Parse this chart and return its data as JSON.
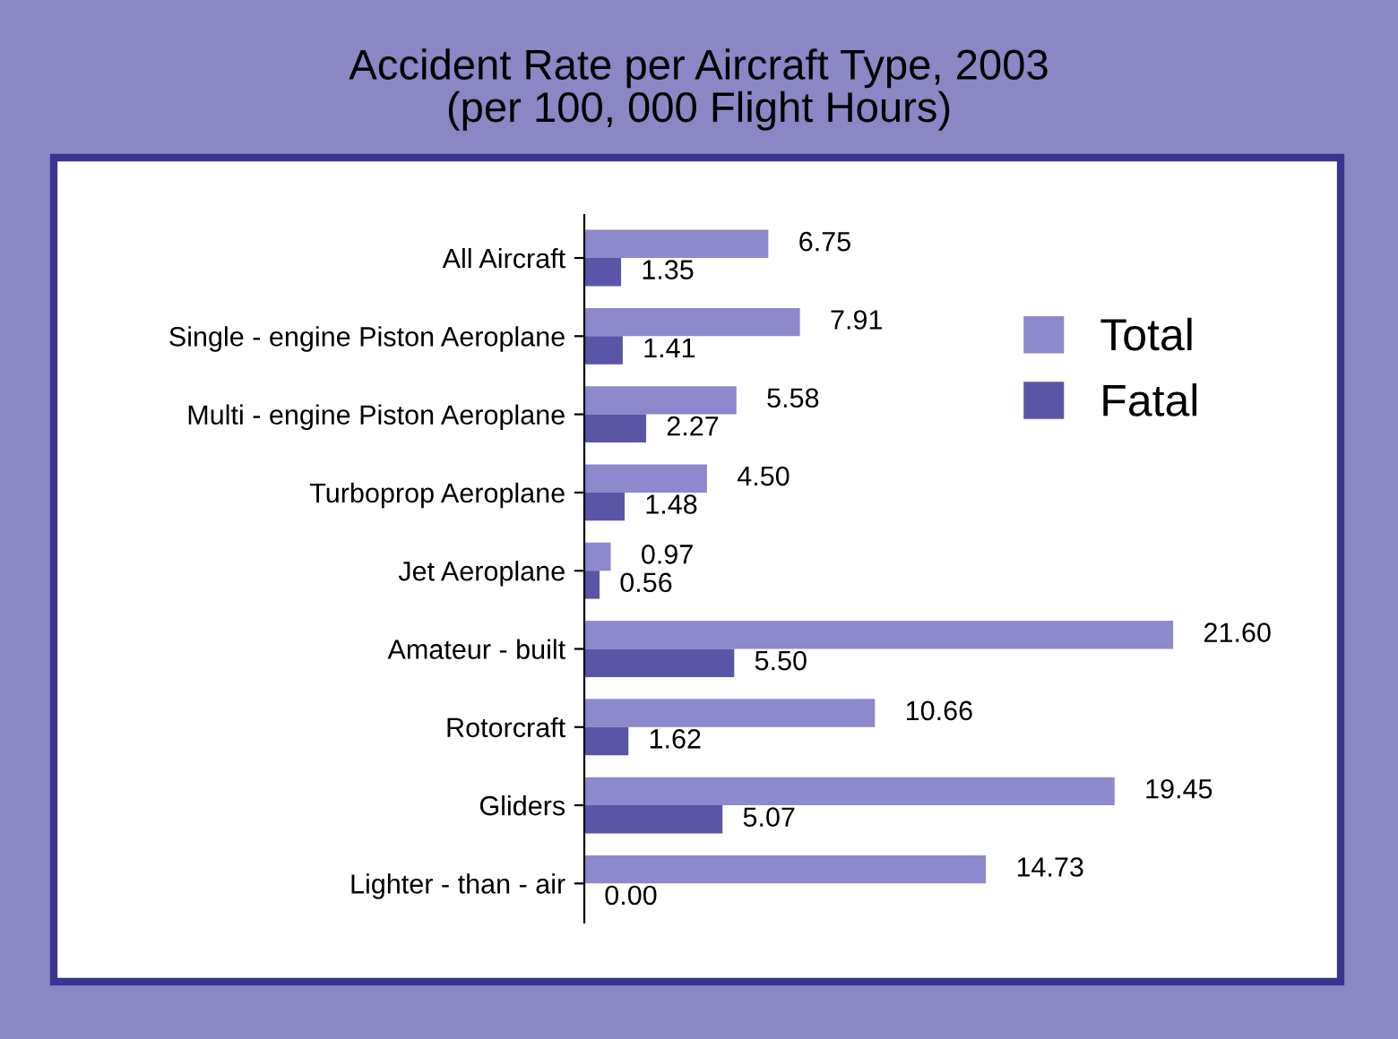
{
  "chart_data": {
    "type": "bar",
    "orientation": "horizontal",
    "title": "Accident Rate per Aircraft Type, 2003\n(per 100, 000 Flight Hours)",
    "categories": [
      "All Aircraft",
      "Single - engine Piston Aeroplane",
      "Multi - engine Piston Aeroplane",
      "Turboprop Aeroplane",
      "Jet Aeroplane",
      "Amateur - built",
      "Rotorcraft",
      "Gliders",
      "Lighter - than - air"
    ],
    "series": [
      {
        "name": "Total",
        "color": "#8e89cc",
        "values": [
          6.75,
          7.91,
          5.58,
          4.5,
          0.97,
          21.6,
          10.66,
          19.45,
          14.73
        ],
        "value_labels": [
          "6.75",
          "7.91",
          "5.58",
          "4.50",
          "0.97",
          "21.60",
          "10.66",
          "19.45",
          "14.73"
        ]
      },
      {
        "name": "Fatal",
        "color": "#5b55a8",
        "values": [
          1.35,
          1.41,
          2.27,
          1.48,
          0.56,
          5.5,
          1.62,
          5.07,
          0.0
        ],
        "value_labels": [
          "1.35",
          "1.41",
          "2.27",
          "1.48",
          "0.56",
          "5.50",
          "1.62",
          "5.07",
          "0.00"
        ]
      }
    ],
    "tick_labels": "y",
    "grid": false,
    "legend": "right"
  }
}
